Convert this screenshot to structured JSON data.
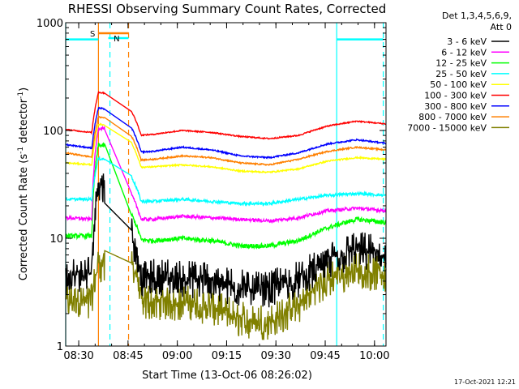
{
  "chart_data": {
    "type": "line",
    "title": "RHESSI Observing Summary Count Rates, Corrected",
    "xlabel": "Start Time (13-Oct-06 08:26:02)",
    "ylabel": "Corrected Count Rate (s",
    "ylabel_sup1": "-1",
    "ylabel_mid": " detector",
    "ylabel_sup2": "-1",
    "ylabel_end": ")",
    "y_scale": "log",
    "ylim": [
      1,
      1000
    ],
    "xlim": [
      "08:26:02",
      "10:03:30"
    ],
    "x_tick_labels": [
      "08:30",
      "08:45",
      "09:00",
      "09:15",
      "09:30",
      "09:45",
      "10:00"
    ],
    "y_tick_labels": [
      "1",
      "10",
      "100",
      "1000"
    ],
    "legend": {
      "header": [
        "Det 1,3,4,5,6,9,",
        "Att 0"
      ],
      "placement": "right"
    },
    "series": [
      {
        "name": "3 - 6 keV",
        "color": "#000000",
        "baseline": [
          4.5,
          4.6,
          4.3,
          4.4,
          4.3,
          4.1,
          3.5,
          3.5,
          4.2,
          6.0,
          8.0,
          7.0
        ],
        "noise": 0.13
      },
      {
        "name": "6 - 12 keV",
        "color": "#ff00ff",
        "baseline": [
          15.5,
          15,
          15,
          15,
          16,
          15.5,
          15,
          14.5,
          15.5,
          18,
          19,
          18
        ],
        "noise": 0.035
      },
      {
        "name": "12 - 25 keV",
        "color": "#00ff00",
        "baseline": [
          10.5,
          10.5,
          10,
          9.5,
          10,
          9.5,
          8.5,
          8.5,
          9.5,
          12.5,
          15,
          14
        ],
        "noise": 0.05
      },
      {
        "name": "25 - 50 keV",
        "color": "#00ffff",
        "baseline": [
          23,
          23,
          22,
          22,
          23,
          22,
          21,
          21,
          23,
          25,
          26,
          25
        ],
        "noise": 0.03
      },
      {
        "name": "50 - 100 keV",
        "color": "#ffff00",
        "baseline": [
          50,
          48,
          45,
          46,
          48,
          46,
          42,
          41,
          44,
          52,
          56,
          54
        ],
        "noise": 0.015
      },
      {
        "name": "100 - 300 keV",
        "color": "#ff0000",
        "baseline": [
          102,
          95,
          88,
          92,
          100,
          96,
          88,
          84,
          90,
          110,
          122,
          115
        ],
        "noise": 0.013
      },
      {
        "name": "300 - 800 keV",
        "color": "#0000ff",
        "baseline": [
          74,
          68,
          62,
          64,
          70,
          66,
          58,
          56,
          62,
          75,
          82,
          76
        ],
        "noise": 0.015
      },
      {
        "name": "800 - 7000 keV",
        "color": "#ff8000",
        "baseline": [
          62,
          56,
          52,
          54,
          58,
          56,
          50,
          48,
          54,
          64,
          70,
          66
        ],
        "noise": 0.015
      },
      {
        "name": "7000 - 15000 keV",
        "color": "#808000",
        "baseline": [
          2.6,
          2.7,
          2.5,
          2.6,
          2.6,
          2.3,
          1.8,
          1.7,
          2.4,
          4.2,
          5.2,
          4.6
        ],
        "noise": 0.12
      }
    ],
    "flags": [
      {
        "label": "S",
        "color": "#ff8000",
        "start": "08:36:00",
        "end": "08:45:10"
      },
      {
        "label": "N",
        "color": "#00ffff",
        "start": "08:39:00",
        "end": "08:45:10"
      }
    ],
    "vertical_lines": [
      {
        "time": "08:26:02",
        "color": "#00ffff",
        "style": "solid"
      },
      {
        "time": "08:36:00",
        "color": "#ff8000",
        "style": "solid"
      },
      {
        "time": "08:39:30",
        "color": "#00ffff",
        "style": "dashed"
      },
      {
        "time": "08:45:10",
        "color": "#ff8000",
        "style": "dashed"
      },
      {
        "time": "09:48:30",
        "color": "#00ffff",
        "style": "solid"
      },
      {
        "time": "10:02:40",
        "color": "#00ffff",
        "style": "dashed"
      }
    ],
    "horizontal_bars": [
      {
        "color": "#00ffff",
        "start": "08:26:02",
        "end": "08:36:00",
        "value": 700
      },
      {
        "color": "#00ffff",
        "start": "09:48:30",
        "end": "10:02:40",
        "value": 700
      }
    ],
    "data_gap": [
      "08:38:00",
      "08:46:00"
    ],
    "flare_peak": {
      "time": "08:36:00",
      "start": "08:34:00"
    }
  },
  "footer": {
    "timestamp": "17-Oct-2021 12:21"
  }
}
